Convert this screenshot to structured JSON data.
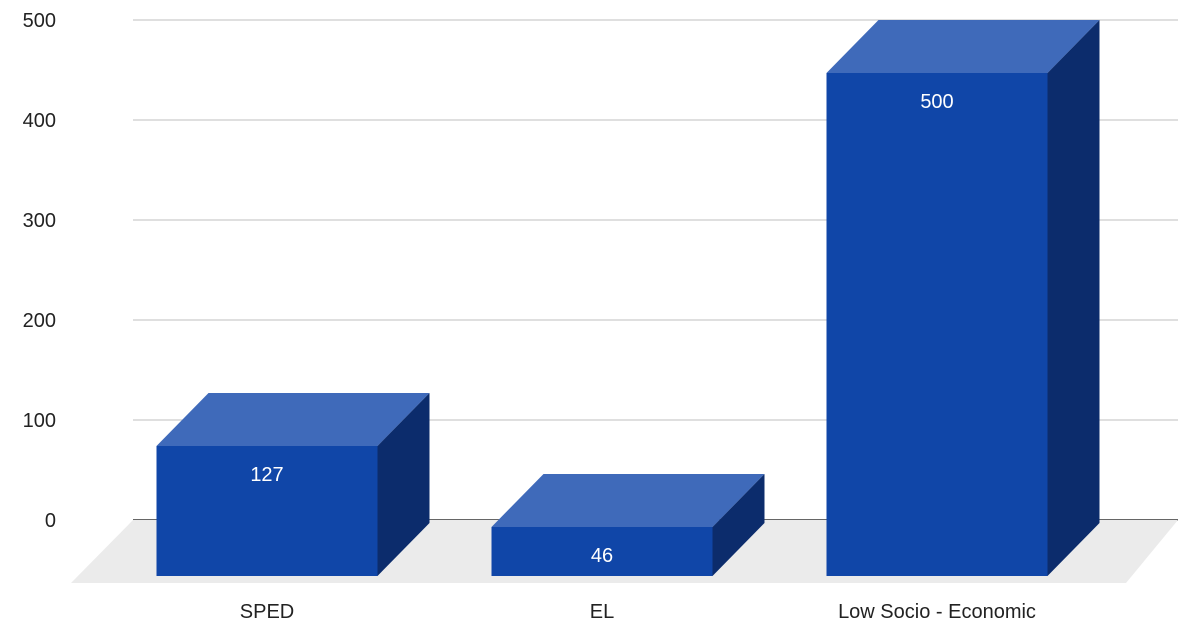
{
  "colors": {
    "bar_front": "#1046a8",
    "bar_top": "#3f6aba",
    "bar_side": "#0c2c6c",
    "grid": "#cccccc",
    "floor": "#ebebeb",
    "baseline": "#333333"
  },
  "chart_data": {
    "type": "bar",
    "style": "3d",
    "title": "",
    "xlabel": "",
    "ylabel": "",
    "categories": [
      "SPED",
      "EL",
      "Low Socio - Economic"
    ],
    "series": [
      {
        "values": [
          127,
          46,
          500
        ],
        "data_labels": [
          "127",
          "46",
          "500"
        ]
      }
    ],
    "ylim": [
      0,
      500
    ],
    "yticks": [
      0,
      100,
      200,
      300,
      400,
      500
    ],
    "yticks_labels": [
      "0",
      "100",
      "200",
      "300",
      "400",
      "500"
    ],
    "grid": true,
    "legend": "none"
  }
}
